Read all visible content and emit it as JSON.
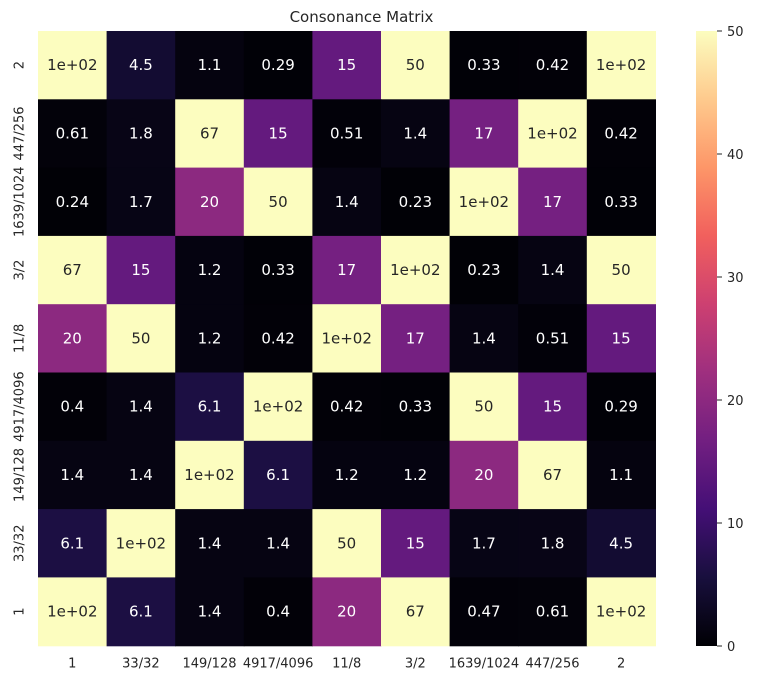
{
  "chart_data": {
    "type": "heatmap",
    "title": "Consonance Matrix",
    "x_labels": [
      "1",
      "33/32",
      "149/128",
      "4917/4096",
      "11/8",
      "3/2",
      "1639/1024",
      "447/256",
      "2"
    ],
    "y_labels": [
      "2",
      "447/256",
      "1639/1024",
      "3/2",
      "11/8",
      "4917/4096",
      "149/128",
      "33/32",
      "1"
    ],
    "values": [
      [
        100,
        4.5,
        1.1,
        0.29,
        15,
        50,
        0.33,
        0.42,
        100
      ],
      [
        0.61,
        1.8,
        67,
        15,
        0.51,
        1.4,
        17,
        100,
        0.42
      ],
      [
        0.24,
        1.7,
        20,
        50,
        1.4,
        0.23,
        100,
        17,
        0.33
      ],
      [
        67,
        15,
        1.2,
        0.33,
        17,
        100,
        0.23,
        1.4,
        50
      ],
      [
        20,
        50,
        1.2,
        0.42,
        100,
        17,
        1.4,
        0.51,
        15
      ],
      [
        0.4,
        1.4,
        6.1,
        100,
        0.42,
        0.33,
        50,
        15,
        0.29
      ],
      [
        1.4,
        1.4,
        100,
        6.1,
        1.2,
        1.2,
        20,
        67,
        1.1
      ],
      [
        6.1,
        100,
        1.4,
        1.4,
        50,
        15,
        1.7,
        1.8,
        4.5
      ],
      [
        100,
        6.1,
        1.4,
        0.4,
        20,
        67,
        0.47,
        0.61,
        100
      ]
    ],
    "annotations": [
      [
        "1e+02",
        "4.5",
        "1.1",
        "0.29",
        "15",
        "50",
        "0.33",
        "0.42",
        "1e+02"
      ],
      [
        "0.61",
        "1.8",
        "67",
        "15",
        "0.51",
        "1.4",
        "17",
        "1e+02",
        "0.42"
      ],
      [
        "0.24",
        "1.7",
        "20",
        "50",
        "1.4",
        "0.23",
        "1e+02",
        "17",
        "0.33"
      ],
      [
        "67",
        "15",
        "1.2",
        "0.33",
        "17",
        "1e+02",
        "0.23",
        "1.4",
        "50"
      ],
      [
        "20",
        "50",
        "1.2",
        "0.42",
        "1e+02",
        "17",
        "1.4",
        "0.51",
        "15"
      ],
      [
        "0.4",
        "1.4",
        "6.1",
        "1e+02",
        "0.42",
        "0.33",
        "50",
        "15",
        "0.29"
      ],
      [
        "1.4",
        "1.4",
        "1e+02",
        "6.1",
        "1.2",
        "1.2",
        "20",
        "67",
        "1.1"
      ],
      [
        "6.1",
        "1e+02",
        "1.4",
        "1.4",
        "50",
        "15",
        "1.7",
        "1.8",
        "4.5"
      ],
      [
        "1e+02",
        "6.1",
        "1.4",
        "0.4",
        "20",
        "67",
        "0.47",
        "0.61",
        "1e+02"
      ]
    ],
    "colorbar": {
      "vmin": 0,
      "vmax": 50,
      "ticks": [
        0,
        10,
        20,
        30,
        40,
        50
      ],
      "colormap": "magma",
      "colors": [
        "#000004",
        "#180f3d",
        "#440f76",
        "#721f81",
        "#9e2f7f",
        "#cd4071",
        "#f1605d",
        "#fd9668",
        "#feca8d",
        "#fcfdbf"
      ]
    },
    "xlabel": "",
    "ylabel": "",
    "grid": false,
    "legend": "colorbar-right"
  }
}
